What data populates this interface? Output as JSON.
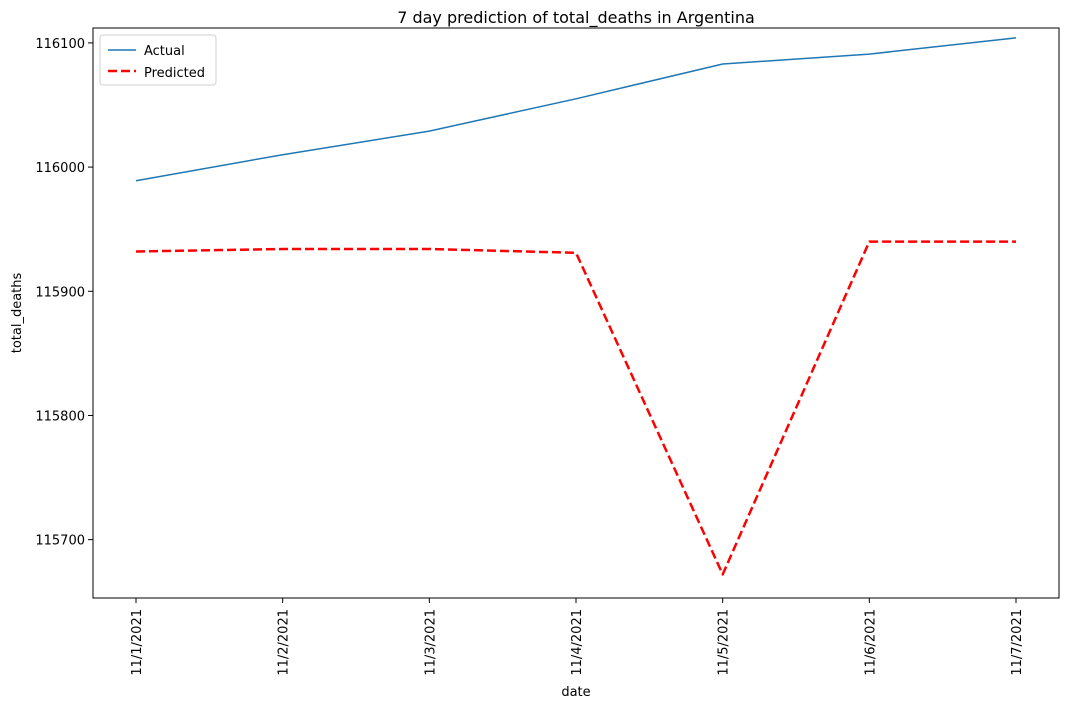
{
  "chart_data": {
    "type": "line",
    "title": "7 day prediction of total_deaths in Argentina",
    "xlabel": "date",
    "ylabel": "total_deaths",
    "categories": [
      "11/1/2021",
      "11/2/2021",
      "11/3/2021",
      "11/4/2021",
      "11/5/2021",
      "11/6/2021",
      "11/7/2021"
    ],
    "ylim": [
      115653,
      116112
    ],
    "yticks": [
      115700,
      115800,
      115900,
      116000,
      116100
    ],
    "series": [
      {
        "name": "Actual",
        "color": "#1f77b4",
        "style": "solid",
        "values": [
          115989,
          116010,
          116029,
          116055,
          116083,
          116091,
          116104
        ]
      },
      {
        "name": "Predicted",
        "color": "#ff0000",
        "style": "dashed",
        "values": [
          115932,
          115934,
          115934,
          115931,
          115672,
          115940,
          115940
        ]
      }
    ],
    "legend_position": "top-left",
    "grid": false
  }
}
